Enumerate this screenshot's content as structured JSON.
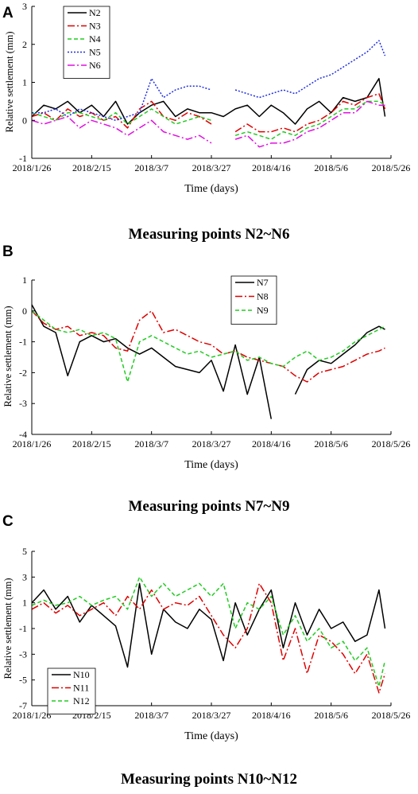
{
  "chart_data": [
    {
      "panel": "A",
      "type": "line",
      "caption": "Measuring points N2~N6",
      "xlabel": "Time (days)",
      "ylabel": "Relative settlement (mm)",
      "x_ticks": [
        "2018/1/26",
        "2018/2/15",
        "2018/3/7",
        "2018/3/27",
        "2018/4/16",
        "2018/5/6",
        "2018/5/26"
      ],
      "xlim": [
        "2018-01-26",
        "2018-05-26"
      ],
      "ylim": [
        -1,
        3
      ],
      "y_ticks": [
        -1,
        0,
        1,
        2,
        3
      ],
      "legend_position": "top-left",
      "x": [
        "2018-01-26",
        "2018-01-30",
        "2018-02-03",
        "2018-02-07",
        "2018-02-11",
        "2018-02-15",
        "2018-02-19",
        "2018-02-23",
        "2018-02-27",
        "2018-03-03",
        "2018-03-07",
        "2018-03-11",
        "2018-03-15",
        "2018-03-19",
        "2018-03-23",
        "2018-03-27",
        "2018-03-31",
        "2018-04-04",
        "2018-04-08",
        "2018-04-12",
        "2018-04-16",
        "2018-04-20",
        "2018-04-24",
        "2018-04-28",
        "2018-05-02",
        "2018-05-06",
        "2018-05-10",
        "2018-05-14",
        "2018-05-18",
        "2018-05-22",
        "2018-05-24"
      ],
      "series": [
        {
          "name": "N2",
          "color": "#000000",
          "dash": "",
          "values": [
            0.1,
            0.4,
            0.3,
            0.5,
            0.2,
            0.4,
            0.1,
            0.5,
            -0.1,
            0.2,
            0.4,
            0.5,
            0.1,
            0.3,
            0.2,
            0.2,
            0.1,
            0.3,
            0.4,
            0.1,
            0.4,
            0.2,
            -0.1,
            0.3,
            0.5,
            0.2,
            0.6,
            0.5,
            0.6,
            1.1,
            0.1
          ]
        },
        {
          "name": "N3",
          "color": "#e00000",
          "dash": "9,3,2,3",
          "values": [
            0.1,
            0.2,
            0.0,
            0.3,
            0.1,
            0.2,
            0.0,
            0.1,
            -0.2,
            0.3,
            0.5,
            0.1,
            0.0,
            0.2,
            0.1,
            -0.1,
            null,
            -0.3,
            -0.1,
            -0.3,
            -0.3,
            -0.2,
            -0.3,
            -0.1,
            0.0,
            0.2,
            0.5,
            0.4,
            0.6,
            0.7,
            0.3
          ]
        },
        {
          "name": "N4",
          "color": "#22cc22",
          "dash": "5,3",
          "values": [
            0.2,
            0.1,
            0.0,
            0.2,
            0.2,
            0.1,
            0.0,
            0.2,
            -0.1,
            0.1,
            0.3,
            0.1,
            -0.1,
            0.0,
            0.1,
            0.0,
            null,
            -0.4,
            -0.3,
            -0.4,
            -0.5,
            -0.3,
            -0.4,
            -0.2,
            -0.1,
            0.1,
            0.3,
            0.3,
            0.5,
            0.5,
            0.4
          ]
        },
        {
          "name": "N5",
          "color": "#1f2ee6",
          "dash": "2,2",
          "values": [
            0.2,
            0.2,
            0.3,
            0.1,
            0.3,
            0.2,
            0.1,
            0.0,
            0.1,
            0.2,
            1.1,
            0.6,
            0.8,
            0.9,
            0.9,
            0.8,
            null,
            0.8,
            0.7,
            0.6,
            0.7,
            0.8,
            0.7,
            0.9,
            1.1,
            1.2,
            1.4,
            1.6,
            1.8,
            2.1,
            1.7
          ]
        },
        {
          "name": "N6",
          "color": "#e010e0",
          "dash": "9,3,2,3",
          "values": [
            0.0,
            -0.1,
            0.0,
            0.1,
            -0.2,
            0.0,
            -0.1,
            -0.2,
            -0.4,
            -0.2,
            0.0,
            -0.3,
            -0.4,
            -0.5,
            -0.4,
            -0.6,
            null,
            -0.5,
            -0.4,
            -0.7,
            -0.6,
            -0.6,
            -0.5,
            -0.3,
            -0.2,
            0.0,
            0.2,
            0.2,
            0.5,
            0.4,
            0.4
          ]
        }
      ]
    },
    {
      "panel": "B",
      "type": "line",
      "caption": "Measuring points N7~N9",
      "xlabel": "Time (days)",
      "ylabel": "Relative settlement (mm)",
      "x_ticks": [
        "2018/1/26",
        "2018/2/15",
        "2018/3/7",
        "2018/3/27",
        "2018/4/16",
        "2018/5/6",
        "2018/5/26"
      ],
      "xlim": [
        "2018-01-26",
        "2018-05-26"
      ],
      "ylim": [
        -4,
        1
      ],
      "y_ticks": [
        -4,
        -3,
        -2,
        -1,
        0,
        1
      ],
      "legend_position": "top-right",
      "x": [
        "2018-01-26",
        "2018-01-30",
        "2018-02-03",
        "2018-02-07",
        "2018-02-11",
        "2018-02-15",
        "2018-02-19",
        "2018-02-23",
        "2018-02-27",
        "2018-03-03",
        "2018-03-07",
        "2018-03-11",
        "2018-03-15",
        "2018-03-19",
        "2018-03-23",
        "2018-03-27",
        "2018-03-31",
        "2018-04-04",
        "2018-04-08",
        "2018-04-12",
        "2018-04-16",
        "2018-04-20",
        "2018-04-24",
        "2018-04-28",
        "2018-05-02",
        "2018-05-06",
        "2018-05-10",
        "2018-05-14",
        "2018-05-18",
        "2018-05-22",
        "2018-05-24"
      ],
      "series": [
        {
          "name": "N7",
          "color": "#000000",
          "dash": "",
          "values": [
            0.2,
            -0.5,
            -0.7,
            -2.1,
            -1.0,
            -0.8,
            -1.0,
            -0.9,
            -1.2,
            -1.4,
            -1.2,
            -1.5,
            -1.8,
            -1.9,
            -2.0,
            -1.6,
            -2.6,
            -1.1,
            -2.7,
            -1.5,
            -3.5,
            null,
            -2.7,
            -1.9,
            -1.6,
            -1.7,
            -1.4,
            -1.1,
            -0.7,
            -0.5,
            -0.6
          ]
        },
        {
          "name": "N8",
          "color": "#e00000",
          "dash": "9,3,2,3",
          "values": [
            0.0,
            -0.4,
            -0.6,
            -0.5,
            -0.8,
            -0.7,
            -0.8,
            -1.2,
            -1.3,
            -0.3,
            0.0,
            -0.7,
            -0.6,
            -0.8,
            -1.0,
            -1.1,
            -1.4,
            -1.3,
            -1.5,
            -1.6,
            -1.7,
            -1.8,
            -2.1,
            -2.3,
            -2.0,
            -1.9,
            -1.8,
            -1.6,
            -1.4,
            -1.3,
            -1.2
          ]
        },
        {
          "name": "N9",
          "color": "#22cc22",
          "dash": "5,3",
          "values": [
            0.0,
            -0.3,
            -0.6,
            -0.7,
            -0.6,
            -0.8,
            -0.7,
            -0.9,
            -2.3,
            -1.0,
            -0.8,
            -1.0,
            -1.2,
            -1.4,
            -1.3,
            -1.5,
            -1.4,
            -1.3,
            -1.6,
            -1.5,
            -1.7,
            -1.8,
            -1.5,
            -1.3,
            -1.6,
            -1.5,
            -1.3,
            -1.0,
            -0.8,
            -0.6,
            -0.5
          ]
        }
      ]
    },
    {
      "panel": "C",
      "type": "line",
      "caption": "Measuring points N10~N12",
      "xlabel": "Time (days)",
      "ylabel": "Relative settlement (mm)",
      "x_ticks": [
        "2018/1/26",
        "2018/2/15",
        "2018/3/7",
        "2018/3/27",
        "2018/4/16",
        "2018/5/6",
        "2018/5/26"
      ],
      "xlim": [
        "2018-01-26",
        "2018-05-26"
      ],
      "ylim": [
        -7,
        5
      ],
      "y_ticks": [
        -7,
        -5,
        -3,
        -1,
        1,
        3,
        5
      ],
      "legend_position": "bottom-left",
      "x": [
        "2018-01-26",
        "2018-01-30",
        "2018-02-03",
        "2018-02-07",
        "2018-02-11",
        "2018-02-15",
        "2018-02-19",
        "2018-02-23",
        "2018-02-27",
        "2018-03-03",
        "2018-03-07",
        "2018-03-11",
        "2018-03-15",
        "2018-03-19",
        "2018-03-23",
        "2018-03-27",
        "2018-03-31",
        "2018-04-04",
        "2018-04-08",
        "2018-04-12",
        "2018-04-16",
        "2018-04-20",
        "2018-04-24",
        "2018-04-28",
        "2018-05-02",
        "2018-05-06",
        "2018-05-10",
        "2018-05-14",
        "2018-05-18",
        "2018-05-22",
        "2018-05-24"
      ],
      "series": [
        {
          "name": "N10",
          "color": "#000000",
          "dash": "",
          "values": [
            1.0,
            2.0,
            0.5,
            1.5,
            -0.5,
            0.8,
            0.0,
            -0.8,
            -4.0,
            2.5,
            -3.0,
            0.5,
            -0.5,
            -1.0,
            0.5,
            -0.3,
            -3.5,
            1.0,
            -1.5,
            0.5,
            2.0,
            -2.5,
            1.0,
            -1.5,
            0.5,
            -1.0,
            -0.5,
            -2.0,
            -1.5,
            2.0,
            -1.0
          ]
        },
        {
          "name": "N11",
          "color": "#e00000",
          "dash": "9,3,2,3",
          "values": [
            0.5,
            1.0,
            0.2,
            0.8,
            0.0,
            0.5,
            1.0,
            0.0,
            1.5,
            0.5,
            2.0,
            0.5,
            1.0,
            0.8,
            1.5,
            0.0,
            -1.5,
            -2.5,
            -1.0,
            2.5,
            1.0,
            -3.5,
            -1.0,
            -4.5,
            -1.5,
            -2.0,
            -3.0,
            -4.5,
            -3.0,
            -6.0,
            -4.5
          ]
        },
        {
          "name": "N12",
          "color": "#22cc22",
          "dash": "5,3",
          "values": [
            0.8,
            1.2,
            0.8,
            1.0,
            1.5,
            0.8,
            1.2,
            1.5,
            0.5,
            3.0,
            1.5,
            2.5,
            1.5,
            2.0,
            2.5,
            1.5,
            2.5,
            -1.0,
            1.0,
            0.5,
            1.5,
            -1.5,
            0.0,
            -2.0,
            -1.0,
            -2.5,
            -2.0,
            -3.5,
            -2.5,
            -5.5,
            -3.5
          ]
        }
      ]
    }
  ]
}
